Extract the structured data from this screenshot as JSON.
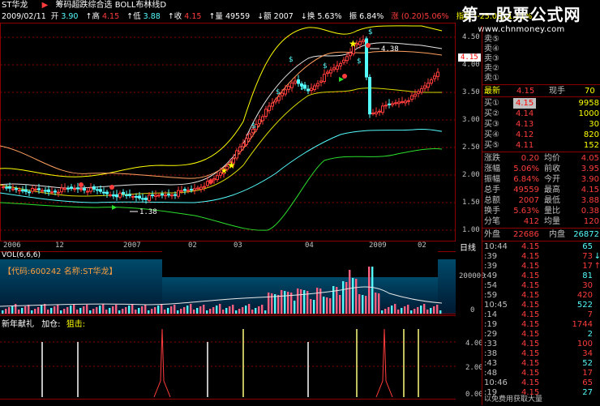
{
  "colors": {
    "bg": "#000000",
    "up": "#ff3c3c",
    "down": "#54fcfc",
    "yellow": "#ffff00",
    "grid": "#8b0000",
    "white": "#ffffff",
    "gray": "#c0c0c0"
  },
  "header": {
    "stock_name": "ST华龙",
    "arrow": "▶",
    "indicator_title": "筹码超跌综合选 BOLL布林线D"
  },
  "quote_line": {
    "date": "2009/02/11",
    "open_label": "开",
    "open": "3.90",
    "high_label": "↑高",
    "high": "4.15",
    "low_label": "↑低",
    "low": "3.88",
    "close_label": "↑收",
    "close": "4.15",
    "vol_label": "↑量",
    "vol": "49559",
    "amount_label": "↓额",
    "amount": "2007",
    "turnover_label": "↓换",
    "turnover": "5.63%",
    "amp_label": "振",
    "amp": "6.84%",
    "chg_label": "涨",
    "chg": "(0.20)5.06%",
    "index_label": "指数",
    "index": "(-25.06)-1.11%"
  },
  "watermark": {
    "title": "第一股票公式网",
    "url": "www.chnmoney.com"
  },
  "price_axis": [
    "4.50",
    "4.00",
    "3.50",
    "3.00",
    "2.50",
    "2.00",
    "1.50",
    "1.00"
  ],
  "price_tag": "4.15",
  "chart_annotations": {
    "high_mark": "4.38",
    "low_mark": "1.38"
  },
  "time_axis": [
    "2006",
    "12",
    "2007",
    "02",
    "03",
    "04",
    "2009",
    "02"
  ],
  "time_axis_right": "日线",
  "volume": {
    "title": "VOL(6,6,6)",
    "axis": [
      "200000",
      "0"
    ],
    "info": "【代码:600242 名称:ST华龙】"
  },
  "indicator": {
    "title": "新年献礼",
    "add_label": "加仓:",
    "snipe_label": "狙击:",
    "axis": [
      "4.00",
      "2.00",
      "0.00"
    ]
  },
  "bottom_dates": [
    "0",
    "2006",
    "12",
    "2007",
    "02",
    "2009"
  ],
  "order_book": {
    "sell": [
      {
        "label": "卖⑤",
        "price": "",
        "vol": ""
      },
      {
        "label": "卖④",
        "price": "",
        "vol": ""
      },
      {
        "label": "卖③",
        "price": "",
        "vol": ""
      },
      {
        "label": "卖②",
        "price": "",
        "vol": ""
      },
      {
        "label": "卖①",
        "price": "",
        "vol": ""
      }
    ],
    "latest_label": "最新",
    "latest": "4.15",
    "cur_hand_label": "现手",
    "cur_hand": "70",
    "buy": [
      {
        "label": "买①",
        "price": "4.15",
        "vol": "9958"
      },
      {
        "label": "买②",
        "price": "4.14",
        "vol": "1000"
      },
      {
        "label": "买③",
        "price": "4.13",
        "vol": "30"
      },
      {
        "label": "买④",
        "price": "4.12",
        "vol": "820"
      },
      {
        "label": "买⑤",
        "price": "4.11",
        "vol": "152"
      }
    ]
  },
  "stats": [
    {
      "l1": "涨跌",
      "v1": "0.20",
      "l2": "均价",
      "v2": "4.05"
    },
    {
      "l1": "涨幅",
      "v1": "5.06%",
      "l2": "前收",
      "v2": "3.95"
    },
    {
      "l1": "振幅",
      "v1": "6.84%",
      "l2": "今开",
      "v2": "3.90"
    },
    {
      "l1": "总手",
      "v1": "49559",
      "l2": "最高",
      "v2": "4.15"
    },
    {
      "l1": "总额",
      "v1": "2007",
      "l2": "最低",
      "v2": "3.88"
    },
    {
      "l1": "换手",
      "v1": "5.63%",
      "l2": "量比",
      "v2": "0.38"
    },
    {
      "l1": "分笔",
      "v1": "412",
      "l2": "均量",
      "v2": "120"
    }
  ],
  "outer_label": "外盘",
  "outer": "22686",
  "inner_label": "内盘",
  "inner": "26872",
  "ticks": [
    {
      "t": "10:44",
      "p": "4.15",
      "v": "65",
      "a": ""
    },
    {
      "t": ":39",
      "p": "4.15",
      "v": "73",
      "a": "↓"
    },
    {
      "t": ":39",
      "p": "4.15",
      "v": "17",
      "a": "↑"
    },
    {
      "t": ":49",
      "p": "4.15",
      "v": "81",
      "a": ""
    },
    {
      "t": ":54",
      "p": "4.15",
      "v": "30",
      "a": ""
    },
    {
      "t": ":59",
      "p": "4.15",
      "v": "420",
      "a": ""
    },
    {
      "t": "10:45",
      "p": "4.15",
      "v": "522",
      "a": ""
    },
    {
      "t": ":14",
      "p": "4.15",
      "v": "7",
      "a": ""
    },
    {
      "t": ":19",
      "p": "4.15",
      "v": "1744",
      "a": ""
    },
    {
      "t": ":29",
      "p": "4.15",
      "v": "2",
      "a": ""
    },
    {
      "t": ":33",
      "p": "4.15",
      "v": "100",
      "a": ""
    },
    {
      "t": ":38",
      "p": "4.15",
      "v": "34",
      "a": ""
    },
    {
      "t": ":43",
      "p": "4.15",
      "v": "52",
      "a": ""
    },
    {
      "t": ":48",
      "p": "4.15",
      "v": "17",
      "a": ""
    },
    {
      "t": "10:46",
      "p": "4.15",
      "v": "65",
      "a": ""
    },
    {
      "t": ":19",
      "p": "4.15",
      "v": "27",
      "a": ""
    }
  ],
  "bottom_note": "以免费用获取大量"
}
